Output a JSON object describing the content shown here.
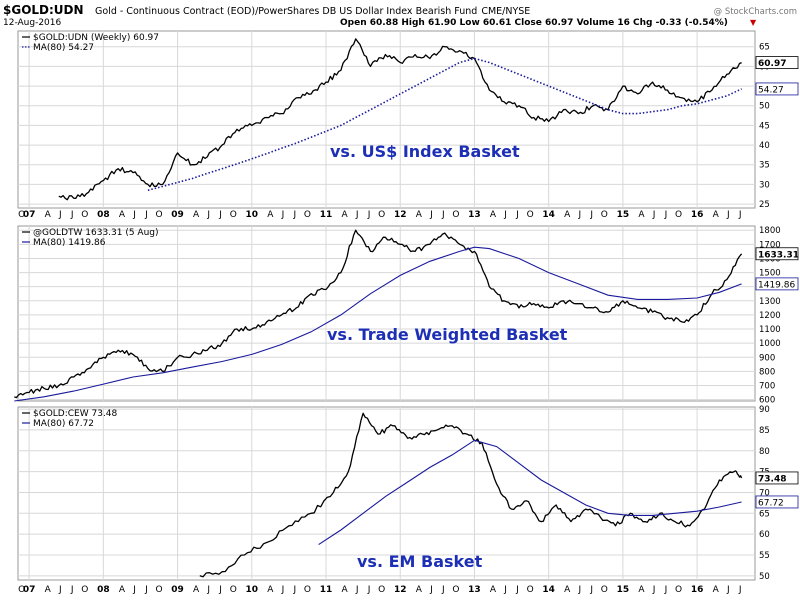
{
  "header": {
    "symbol": "$GOLD:UDN",
    "description": "Gold - Continuous Contract (EOD)/PowerShares DB US Dollar Index Bearish Fund",
    "exchange": "CME/NYSE",
    "date": "12-Aug-2016",
    "quote": "Open 60.88  High 61.90  Low 60.61  Close 60.97  Volume 16  Chg -0.33 (-0.54%)",
    "watermark": "@ StockCharts.com",
    "change_marker": "▼"
  },
  "colors": {
    "price": "#000000",
    "ma": "#1a1a9c",
    "annotation": "#1c2fb5",
    "grid": "#d8d8d8",
    "frame": "#9a9a9a"
  },
  "chart_data": [
    {
      "type": "line",
      "legend_price": "$GOLD:UDN (Weekly) 60.97",
      "legend_ma": "MA(80) 54.27",
      "annotation": "vs. US$ Index Basket",
      "last_price_label": "60.97",
      "ma_label": "54.27",
      "ma_style": "dotted",
      "ylim": [
        24,
        69
      ],
      "yticks": [
        25,
        30,
        35,
        40,
        45,
        50,
        55,
        60,
        65
      ],
      "x": [
        2007.4,
        2007.6,
        2007.8,
        2008.0,
        2008.2,
        2008.4,
        2008.6,
        2008.8,
        2009.0,
        2009.2,
        2009.4,
        2009.6,
        2009.8,
        2010.0,
        2010.2,
        2010.4,
        2010.6,
        2010.8,
        2011.0,
        2011.2,
        2011.4,
        2011.6,
        2011.8,
        2012.0,
        2012.2,
        2012.4,
        2012.6,
        2012.8,
        2013.0,
        2013.2,
        2013.4,
        2013.6,
        2013.8,
        2014.0,
        2014.2,
        2014.4,
        2014.6,
        2014.8,
        2015.0,
        2015.2,
        2015.4,
        2015.6,
        2015.8,
        2016.0,
        2016.2,
        2016.4,
        2016.6
      ],
      "price": [
        27,
        26.5,
        28,
        31,
        34,
        33,
        30,
        30,
        38,
        35,
        37,
        40,
        44,
        45,
        47,
        48,
        52,
        53,
        56,
        59,
        67,
        60,
        63,
        61,
        63,
        62,
        65,
        64,
        62,
        54,
        51,
        50,
        47,
        46,
        49,
        48,
        50,
        49,
        55,
        53,
        56,
        54,
        52,
        51,
        54,
        58,
        60.97
      ],
      "ma_x": [
        2008.6,
        2008.8,
        2009.0,
        2009.2,
        2009.4,
        2009.6,
        2009.8,
        2010.0,
        2010.2,
        2010.4,
        2010.6,
        2010.8,
        2011.0,
        2011.2,
        2011.4,
        2011.6,
        2011.8,
        2012.0,
        2012.2,
        2012.4,
        2012.6,
        2012.8,
        2013.0,
        2013.2,
        2013.4,
        2013.6,
        2013.8,
        2014.0,
        2014.2,
        2014.4,
        2014.6,
        2014.8,
        2015.0,
        2015.2,
        2015.4,
        2015.6,
        2015.8,
        2016.0,
        2016.2,
        2016.4,
        2016.6
      ],
      "ma": [
        28.5,
        29.5,
        30.5,
        31.5,
        32.8,
        34,
        35.2,
        36.5,
        37.8,
        39.2,
        40.5,
        42,
        43.5,
        45,
        47,
        49,
        51,
        53,
        55,
        57,
        59,
        61,
        62,
        61,
        59.5,
        58,
        56.5,
        55,
        53.5,
        52,
        50.5,
        49,
        48,
        48,
        48.5,
        49,
        50,
        50.5,
        51.5,
        52.5,
        54.27
      ]
    },
    {
      "type": "line",
      "legend_price": "@GOLDTW 1633.31 (5 Aug)",
      "legend_ma": "MA(80) 1419.86",
      "annotation": "vs. Trade Weighted Basket",
      "last_price_label": "1633.31",
      "ma_label": "1419.86",
      "ma_style": "solid",
      "ylim": [
        590,
        1830
      ],
      "yticks": [
        600,
        700,
        800,
        900,
        1000,
        1100,
        1200,
        1300,
        1400,
        1500,
        1600,
        1700,
        1800
      ],
      "x": [
        2006.8,
        2007.0,
        2007.2,
        2007.4,
        2007.6,
        2007.8,
        2008.0,
        2008.2,
        2008.4,
        2008.6,
        2008.8,
        2009.0,
        2009.2,
        2009.4,
        2009.6,
        2009.8,
        2010.0,
        2010.2,
        2010.4,
        2010.6,
        2010.8,
        2011.0,
        2011.2,
        2011.4,
        2011.6,
        2011.8,
        2012.0,
        2012.2,
        2012.4,
        2012.6,
        2012.8,
        2013.0,
        2013.2,
        2013.4,
        2013.6,
        2013.8,
        2014.0,
        2014.2,
        2014.4,
        2014.6,
        2014.8,
        2015.0,
        2015.2,
        2015.4,
        2015.6,
        2015.8,
        2016.0,
        2016.2,
        2016.4,
        2016.6
      ],
      "price": [
        620,
        650,
        680,
        700,
        760,
        820,
        900,
        950,
        920,
        820,
        800,
        900,
        920,
        950,
        1000,
        1100,
        1100,
        1150,
        1200,
        1250,
        1350,
        1380,
        1500,
        1800,
        1650,
        1750,
        1700,
        1650,
        1700,
        1780,
        1700,
        1650,
        1400,
        1300,
        1250,
        1280,
        1250,
        1300,
        1280,
        1250,
        1220,
        1300,
        1250,
        1220,
        1180,
        1150,
        1200,
        1350,
        1450,
        1633.31
      ],
      "ma_x": [
        2006.8,
        2007.2,
        2007.6,
        2008.0,
        2008.4,
        2008.8,
        2009.2,
        2009.6,
        2010.0,
        2010.4,
        2010.8,
        2011.2,
        2011.6,
        2012.0,
        2012.4,
        2012.8,
        2013.0,
        2013.2,
        2013.6,
        2014.0,
        2014.4,
        2014.8,
        2015.2,
        2015.6,
        2016.0,
        2016.3,
        2016.6
      ],
      "ma": [
        590,
        620,
        660,
        710,
        760,
        790,
        830,
        870,
        920,
        990,
        1080,
        1200,
        1350,
        1480,
        1580,
        1650,
        1680,
        1670,
        1600,
        1500,
        1420,
        1340,
        1310,
        1310,
        1320,
        1360,
        1419.86
      ]
    },
    {
      "type": "line",
      "legend_price": "$GOLD:CEW 73.48",
      "legend_ma": "MA(80) 67.72",
      "annotation": "vs. EM Basket",
      "last_price_label": "73.48",
      "ma_label": "67.72",
      "ma_style": "solid",
      "ylim": [
        49,
        90.5
      ],
      "yticks": [
        50,
        55,
        60,
        65,
        70,
        75,
        80,
        85,
        90
      ],
      "x": [
        2009.3,
        2009.6,
        2009.9,
        2010.2,
        2010.5,
        2010.8,
        2011.1,
        2011.3,
        2011.5,
        2011.7,
        2011.9,
        2012.1,
        2012.3,
        2012.5,
        2012.7,
        2012.9,
        2013.1,
        2013.3,
        2013.5,
        2013.7,
        2013.9,
        2014.1,
        2014.3,
        2014.5,
        2014.7,
        2014.9,
        2015.1,
        2015.3,
        2015.5,
        2015.7,
        2015.9,
        2016.1,
        2016.3,
        2016.5,
        2016.6
      ],
      "price": [
        50,
        51,
        55,
        58,
        62,
        65,
        70,
        75,
        89,
        84,
        86,
        83,
        84,
        85,
        86,
        84,
        82,
        72,
        66,
        68,
        63,
        67,
        63,
        66,
        64,
        62,
        65,
        63,
        65,
        63,
        62,
        66,
        73,
        75,
        73.48
      ],
      "ma_x": [
        2010.9,
        2011.2,
        2011.5,
        2011.8,
        2012.1,
        2012.4,
        2012.7,
        2013.0,
        2013.3,
        2013.6,
        2013.9,
        2014.2,
        2014.5,
        2014.8,
        2015.1,
        2015.4,
        2015.7,
        2016.0,
        2016.3,
        2016.6
      ],
      "ma": [
        57.5,
        61,
        65,
        69,
        72.5,
        76,
        79,
        82.5,
        81,
        77,
        73,
        70,
        67,
        65,
        64.5,
        64.5,
        65,
        65.5,
        66.5,
        67.72
      ]
    }
  ],
  "x_axis": {
    "x_range": [
      2006.85,
      2016.78
    ],
    "ticks": [
      {
        "label": "O",
        "v": 2006.9
      },
      {
        "label": "07",
        "v": 2007.0
      },
      {
        "label": "A",
        "v": 2007.25
      },
      {
        "label": "J",
        "v": 2007.42
      },
      {
        "label": "J",
        "v": 2007.58
      },
      {
        "label": "O",
        "v": 2007.75
      },
      {
        "label": "08",
        "v": 2008.0
      },
      {
        "label": "A",
        "v": 2008.25
      },
      {
        "label": "J",
        "v": 2008.42
      },
      {
        "label": "J",
        "v": 2008.58
      },
      {
        "label": "O",
        "v": 2008.75
      },
      {
        "label": "09",
        "v": 2009.0
      },
      {
        "label": "A",
        "v": 2009.25
      },
      {
        "label": "J",
        "v": 2009.42
      },
      {
        "label": "J",
        "v": 2009.58
      },
      {
        "label": "O",
        "v": 2009.75
      },
      {
        "label": "10",
        "v": 2010.0
      },
      {
        "label": "A",
        "v": 2010.25
      },
      {
        "label": "J",
        "v": 2010.42
      },
      {
        "label": "J",
        "v": 2010.58
      },
      {
        "label": "O",
        "v": 2010.75
      },
      {
        "label": "11",
        "v": 2011.0
      },
      {
        "label": "A",
        "v": 2011.25
      },
      {
        "label": "J",
        "v": 2011.42
      },
      {
        "label": "J",
        "v": 2011.58
      },
      {
        "label": "O",
        "v": 2011.75
      },
      {
        "label": "12",
        "v": 2012.0
      },
      {
        "label": "A",
        "v": 2012.25
      },
      {
        "label": "J",
        "v": 2012.42
      },
      {
        "label": "J",
        "v": 2012.58
      },
      {
        "label": "O",
        "v": 2012.75
      },
      {
        "label": "13",
        "v": 2013.0
      },
      {
        "label": "A",
        "v": 2013.25
      },
      {
        "label": "J",
        "v": 2013.42
      },
      {
        "label": "J",
        "v": 2013.58
      },
      {
        "label": "O",
        "v": 2013.75
      },
      {
        "label": "14",
        "v": 2014.0
      },
      {
        "label": "A",
        "v": 2014.25
      },
      {
        "label": "J",
        "v": 2014.42
      },
      {
        "label": "J",
        "v": 2014.58
      },
      {
        "label": "O",
        "v": 2014.75
      },
      {
        "label": "15",
        "v": 2015.0
      },
      {
        "label": "A",
        "v": 2015.25
      },
      {
        "label": "J",
        "v": 2015.42
      },
      {
        "label": "J",
        "v": 2015.58
      },
      {
        "label": "O",
        "v": 2015.75
      },
      {
        "label": "16",
        "v": 2016.0
      },
      {
        "label": "A",
        "v": 2016.25
      },
      {
        "label": "J",
        "v": 2016.42
      },
      {
        "label": "J",
        "v": 2016.58
      }
    ]
  }
}
